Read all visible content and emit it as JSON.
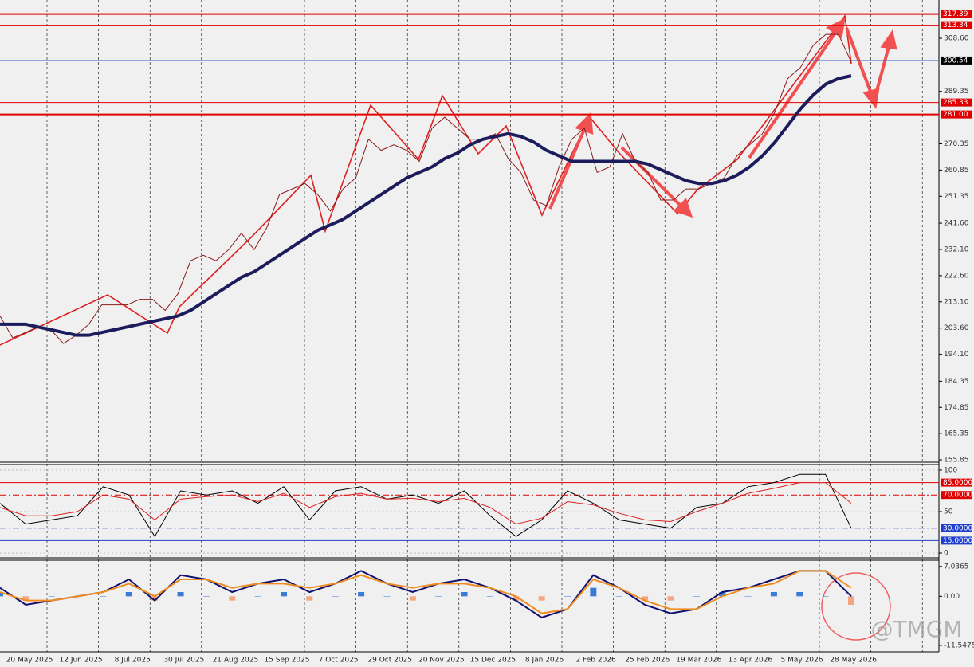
{
  "chart_data": [
    {
      "type": "line",
      "ylim": [
        155.0,
        321.6
      ],
      "yticks": [
        155.85,
        165.35,
        174.85,
        184.35,
        {
          "value": 194.1,
          "label": "194.10"
        },
        {
          "value": 203.6,
          "label": "203.60"
        },
        {
          "value": 213.1,
          "label": "213.10"
        },
        {
          "value": 222.6,
          "label": "222.60"
        },
        {
          "value": 232.1,
          "label": "232.10"
        },
        {
          "value": 241.6,
          "label": "241.60"
        },
        251.35,
        260.85,
        270.35,
        289.35,
        {
          "value": 308.6,
          "label": "308.60"
        }
      ],
      "levels": [
        {
          "value": 317.39,
          "label": "317.39",
          "color": "#e00000"
        },
        {
          "value": 313.34,
          "label": "313.34",
          "color": "#e00000"
        },
        {
          "value": 300.54,
          "label": "300.54",
          "color": "#3060c0"
        },
        {
          "value": 285.33,
          "label": "285.33",
          "color": "#e00000"
        },
        {
          "value": 281,
          "label": "281.00",
          "color": "#e00000"
        }
      ],
      "xtick_labels": [
        "20 May 2025",
        "12 Jun 2025",
        "8 Jul 2025",
        "30 Jul 2025",
        "21 Aug 2025",
        "15 Sep 2025",
        "7 Oct 2025",
        "29 Oct 2025",
        "20 Nov 2025",
        "15 Dec 2025",
        "8 Jan 2026",
        "2 Feb 2026",
        "25 Feb 2026",
        "19 Mar 2026",
        "13 Apr 2026",
        "5 May 2026",
        "28 May 2026"
      ],
      "series": [
        {
          "color": "#8b1a1a",
          "values": [
            208,
            200,
            202,
            204,
            203,
            198,
            201,
            205,
            212,
            212,
            212,
            214,
            214,
            210,
            216,
            228,
            230,
            228,
            232,
            238,
            232,
            240,
            252,
            254,
            256,
            252,
            246,
            254,
            258,
            272,
            268,
            270,
            268,
            264,
            276,
            280,
            276,
            272,
            272,
            274,
            265,
            260,
            250,
            248,
            262,
            272,
            276,
            260,
            262,
            274,
            264,
            260,
            250,
            250,
            254,
            254,
            256,
            258,
            266,
            270,
            274,
            282,
            294,
            298,
            306,
            310,
            310,
            300
          ]
        },
        {
          "color": "#1c1c5c",
          "values": [
            205,
            205,
            205,
            204,
            203,
            202,
            201,
            201,
            202,
            203,
            204,
            205,
            206,
            207,
            208,
            210,
            213,
            216,
            219,
            222,
            224,
            227,
            230,
            233,
            236,
            239,
            241,
            243,
            246,
            249,
            252,
            255,
            258,
            260,
            262,
            265,
            267,
            270,
            272,
            273,
            274,
            273,
            271,
            268,
            266,
            264,
            264,
            264,
            264,
            264,
            264,
            263,
            261,
            259,
            257,
            256,
            256,
            257,
            259,
            262,
            266,
            271,
            277,
            283,
            288,
            292,
            294,
            295
          ]
        }
      ]
    },
    {
      "type": "line",
      "ylim": [
        0,
        100
      ],
      "yticks": [
        100,
        50,
        0
      ],
      "levels": [
        {
          "value": 85,
          "label": "85.0000",
          "color": "#e00000"
        },
        {
          "value": 70,
          "label": "70.0000",
          "color": "#e00000"
        },
        {
          "value": 30,
          "label": "30.0000",
          "color": "#1f3fd0"
        },
        {
          "value": 15,
          "label": "15.0000",
          "color": "#1f3fd0"
        }
      ],
      "series": [
        {
          "color": "#000000",
          "values": [
            60,
            35,
            40,
            45,
            80,
            70,
            20,
            75,
            70,
            75,
            60,
            80,
            40,
            75,
            80,
            65,
            70,
            60,
            75,
            45,
            20,
            40,
            75,
            60,
            40,
            35,
            30,
            55,
            60,
            80,
            85,
            95,
            95,
            30
          ]
        },
        {
          "color": "#e02020",
          "values": [
            55,
            45,
            45,
            50,
            70,
            65,
            40,
            65,
            68,
            70,
            62,
            72,
            55,
            68,
            72,
            65,
            66,
            62,
            66,
            55,
            35,
            42,
            62,
            58,
            48,
            40,
            38,
            50,
            60,
            72,
            78,
            85,
            85,
            60
          ]
        }
      ]
    },
    {
      "type": "bar",
      "ylim": [
        -12.5,
        8.5
      ],
      "yticks": [
        7.0365,
        {
          "value": 0,
          "label": "0.00"
        },
        -11.5475
      ],
      "values": [
        1,
        -1,
        0,
        0,
        0,
        1,
        -1,
        1,
        0,
        -1,
        0,
        1,
        -1,
        0,
        1,
        0,
        -1,
        0,
        1,
        0,
        -1,
        -1,
        0,
        2,
        0,
        -1,
        -1,
        0,
        1,
        0,
        1,
        1,
        0,
        -2
      ],
      "colors": [
        "#3a7bd5",
        "#f4a582"
      ],
      "series": [
        {
          "color": "#101070",
          "values": [
            2,
            -2,
            -1,
            0,
            1,
            4,
            -1,
            5,
            4,
            1,
            3,
            4,
            1,
            3,
            6,
            3,
            1,
            3,
            4,
            2,
            -1,
            -5,
            -3,
            5,
            2,
            -2,
            -4,
            -3,
            1,
            2,
            4,
            6,
            6,
            0
          ]
        },
        {
          "color": "#f08c1e",
          "values": [
            1,
            -1,
            -1,
            0,
            1,
            3,
            0,
            4,
            4,
            2,
            3,
            3,
            2,
            3,
            5,
            3,
            2,
            3,
            3,
            2,
            0,
            -4,
            -3,
            4,
            2,
            -1,
            -3,
            -3,
            0,
            2,
            3,
            6,
            6,
            2
          ]
        }
      ]
    }
  ],
  "watermark": "@TMGM"
}
